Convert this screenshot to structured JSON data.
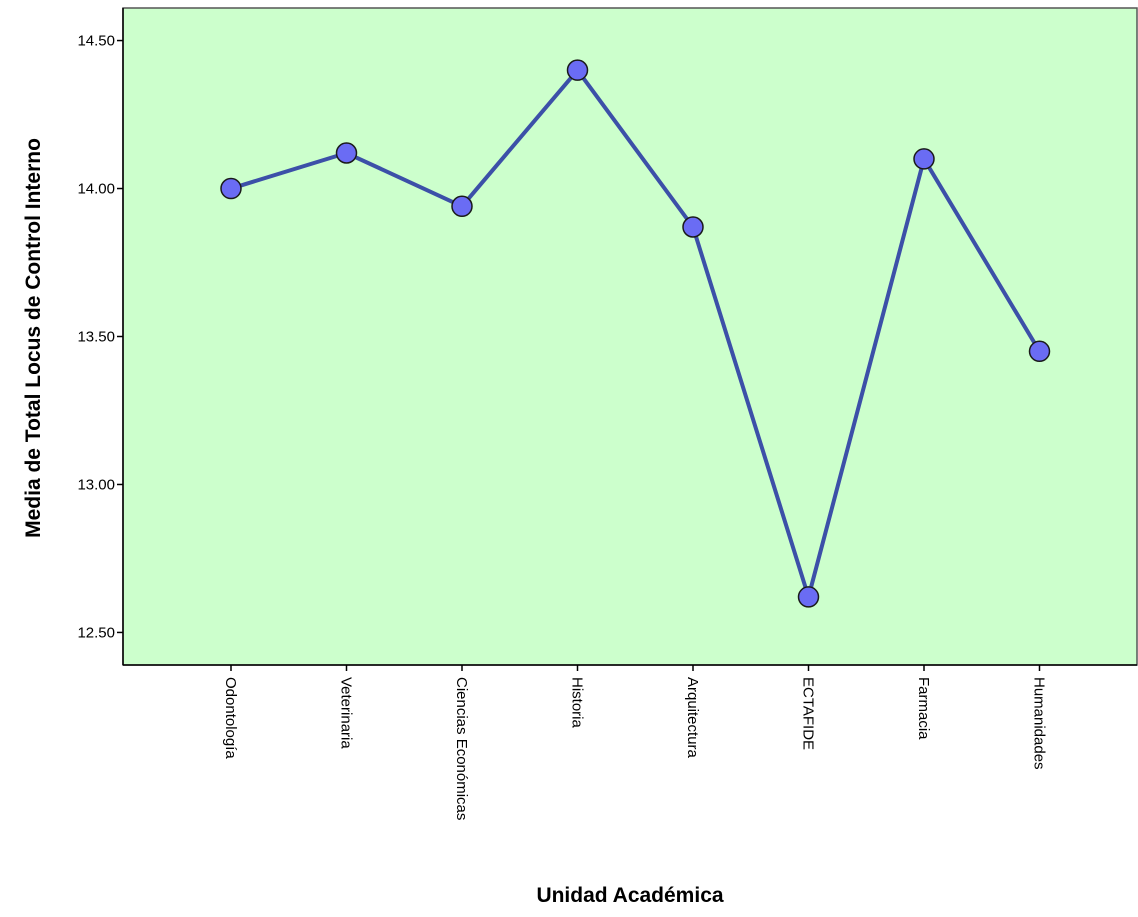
{
  "chart_data": {
    "type": "line",
    "xlabel": "Unidad Académica",
    "ylabel": "Media de Total Locus de Control Interno",
    "categories": [
      "Odontología",
      "Veterinaria",
      "Ciencias Económicas",
      "Historia",
      "Arquitectura",
      "ECTAFIDE",
      "Farmacia",
      "Humanidades"
    ],
    "series": [
      {
        "values": [
          14.0,
          14.12,
          13.94,
          14.4,
          13.87,
          12.62,
          14.1,
          13.45
        ]
      }
    ],
    "yticks": [
      "12.50",
      "13.00",
      "13.50",
      "14.00",
      "14.50"
    ],
    "ylim": [
      12.39,
      14.61
    ],
    "grid": false,
    "legend": "none",
    "colors": {
      "plot_background": "#ccffcc",
      "line": "#3c50a8",
      "marker_fill": "#6a6cf4",
      "marker_stroke": "#1a1a1a"
    }
  }
}
